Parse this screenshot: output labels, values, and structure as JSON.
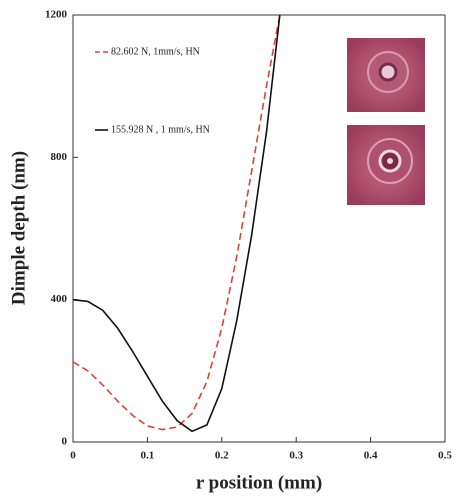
{
  "chart_data": {
    "type": "line",
    "xlabel": "r position (mm)",
    "ylabel": "Dimple depth (nm)",
    "x": [
      0,
      0.02,
      0.04,
      0.06,
      0.08,
      0.1,
      0.12,
      0.14,
      0.16,
      0.18,
      0.2,
      0.22,
      0.24,
      0.26,
      0.278
    ],
    "series": [
      {
        "name": "82.602 N, 1mm/s, HN",
        "color": "#e0403a",
        "dash": true,
        "values": [
          225,
          200,
          160,
          115,
          75,
          45,
          35,
          42,
          80,
          170,
          320,
          520,
          760,
          1000,
          1200
        ]
      },
      {
        "name": "155.928 N , 1 mm/s, HN",
        "color": "#111111",
        "dash": false,
        "values": [
          400,
          395,
          370,
          320,
          255,
          185,
          115,
          60,
          30,
          48,
          150,
          340,
          580,
          870,
          1200
        ]
      }
    ],
    "xlim": [
      0,
      0.5
    ],
    "xticks": [
      0,
      0.1,
      0.2,
      0.3,
      0.4,
      0.5
    ],
    "ylim": [
      0,
      1200
    ],
    "yticks": [
      0,
      400,
      800,
      1200
    ]
  }
}
